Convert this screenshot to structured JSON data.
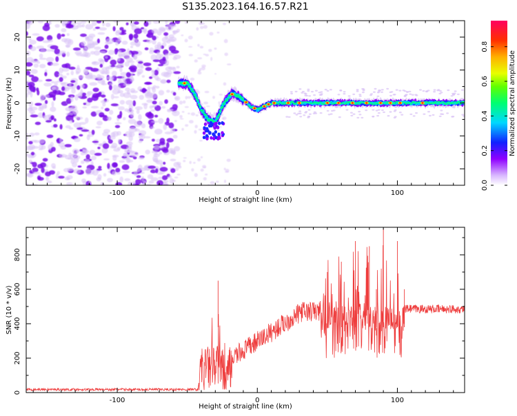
{
  "title": "S135.2023.164.16.57.R21",
  "colors": {
    "snr_line": "#ee3b3b",
    "axis": "#000000",
    "noise_dark": "#7a10e8",
    "noise_light": "#d9c2f5"
  },
  "chart_data": [
    {
      "type": "heatmap",
      "xlabel": "Height of straight line (km)",
      "ylabel": "Frequency (Hz)",
      "xlim": [
        -165,
        148
      ],
      "ylim": [
        -25,
        25
      ],
      "x_ticks": [
        -100,
        0,
        100
      ],
      "y_ticks": [
        -20,
        -10,
        0,
        10,
        20
      ],
      "colorbar": {
        "label": "Normalized spectral amplitude",
        "range": [
          0,
          0.95
        ],
        "ticks": [
          0.0,
          0.2,
          0.4,
          0.6,
          0.8
        ],
        "colormap": "gist_rainbow_reversed"
      },
      "ridge": {
        "description_x": [
          -55,
          -50,
          -45,
          -40,
          -35,
          -30,
          -25,
          -20,
          -17,
          -10,
          -5,
          0,
          5,
          10,
          20,
          30,
          40,
          50,
          60,
          70,
          80,
          90,
          100,
          110,
          120,
          130,
          140,
          148
        ],
        "description_y": [
          6,
          6,
          3,
          -2,
          -5,
          -6,
          -1,
          2,
          3,
          1,
          -1,
          -2,
          -1,
          0,
          0,
          0,
          0,
          0,
          0,
          0,
          0,
          0,
          0,
          0,
          0,
          0,
          0,
          0
        ]
      }
    },
    {
      "type": "line",
      "xlabel": "Height of straight line (km)",
      "ylabel": "SNR (10 * v/v)",
      "xlim": [
        -165,
        148
      ],
      "ylim": [
        0,
        960
      ],
      "x_ticks": [
        -100,
        0,
        100
      ],
      "y_ticks": [
        0,
        200,
        400,
        600,
        800
      ],
      "series": [
        {
          "x": [
            -165,
            -120,
            -80,
            -45,
            -40,
            -38,
            -35,
            -33,
            -30,
            -28,
            -25,
            -22,
            -20,
            -17,
            -15,
            -12,
            -10,
            -5,
            0,
            5,
            10,
            15,
            20,
            25,
            30,
            40,
            45,
            50,
            55,
            60,
            65,
            70,
            75,
            80,
            85,
            90,
            95,
            100,
            105,
            110,
            120,
            130,
            140,
            148
          ],
          "y": [
            20,
            20,
            20,
            20,
            60,
            190,
            150,
            480,
            200,
            650,
            100,
            400,
            60,
            300,
            180,
            320,
            250,
            340,
            360,
            380,
            420,
            400,
            430,
            450,
            470,
            490,
            480,
            700,
            520,
            760,
            550,
            880,
            500,
            850,
            600,
            950,
            560,
            880,
            600,
            500,
            490,
            480,
            470,
            480
          ]
        }
      ]
    }
  ]
}
